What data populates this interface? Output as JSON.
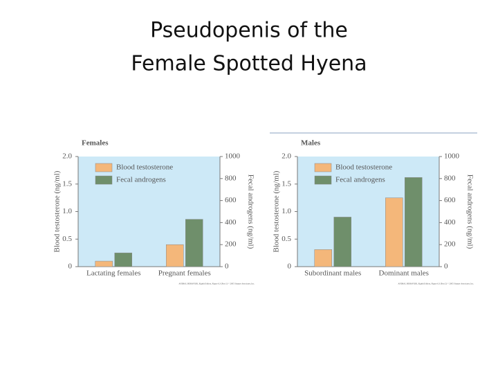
{
  "slide": {
    "title": [
      "Pseudopenis of the",
      "Female Spotted Hyena"
    ]
  },
  "chart_data": [
    {
      "type": "bar",
      "title": "Females",
      "categories": [
        "Lactating females",
        "Pregnant females"
      ],
      "ylabel": "Blood testosterone (ng/ml)",
      "y2label": "Fecal androgens (ng/ml)",
      "ylim": [
        0,
        2
      ],
      "yticks": [
        0,
        0.5,
        {
          "value": 1,
          "label": "1.0"
        },
        1.5,
        {
          "value": 2,
          "label": "2.0"
        }
      ],
      "y2lim": [
        0,
        1000
      ],
      "y2ticks": [
        0,
        200,
        400,
        600,
        800,
        1000
      ],
      "legend": "upper left",
      "series": [
        {
          "name": "Blood testosterone",
          "color": "#f4b77a",
          "axis": "y",
          "values": [
            0.1,
            0.4
          ]
        },
        {
          "name": "Fecal androgens",
          "color": "#6f8f6b",
          "axis": "y2",
          "values": [
            125,
            430
          ]
        }
      ],
      "footnote": "ANIMAL BEHAVIOR, Eighth Edition, Figure 6.3 (Part 1) © 2005 Sinauer Associates, Inc."
    },
    {
      "type": "bar",
      "title": "Males",
      "categories": [
        "Subordinant males",
        "Dominant males"
      ],
      "ylabel": "Blood testosterone (ng/ml)",
      "y2label": "Fecal androgens (ng/ml)",
      "ylim": [
        0,
        2
      ],
      "yticks": [
        0,
        0.5,
        {
          "value": 1,
          "label": "1.0"
        },
        1.5,
        {
          "value": 2,
          "label": "2.0"
        }
      ],
      "y2lim": [
        0,
        1000
      ],
      "y2ticks": [
        0,
        200,
        400,
        600,
        800,
        1000
      ],
      "legend": "upper left",
      "series": [
        {
          "name": "Blood testosterone",
          "color": "#f4b77a",
          "axis": "y",
          "values": [
            0.31,
            1.25
          ]
        },
        {
          "name": "Fecal androgens",
          "color": "#6f8f6b",
          "axis": "y2",
          "values": [
            450,
            810
          ]
        }
      ],
      "footnote": "ANIMAL BEHAVIOR, Eighth Edition, Figure 6.3 (Part 2) © 2005 Sinauer Associates, Inc."
    }
  ]
}
